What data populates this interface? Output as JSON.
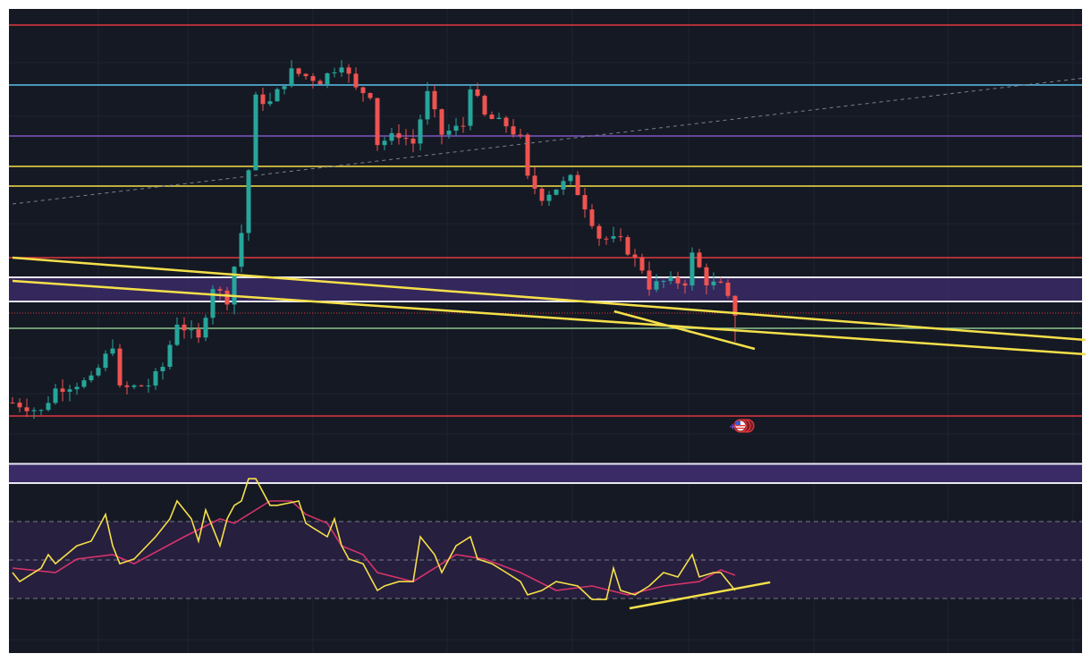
{
  "chart_data": {
    "type": "candlestick",
    "title": "",
    "xlabel": "",
    "ylabel": "",
    "grid": true,
    "colors": {
      "background": "#151924",
      "up": "#26a69a",
      "down": "#ef5350",
      "rsi": "#f5e04a",
      "rsi_ma": "#d6336c",
      "trendline": "#f5e04a"
    },
    "price": {
      "ylim": [
        0,
        98
      ],
      "close_anchors": [
        [
          0,
          10
        ],
        [
          4,
          8
        ],
        [
          6,
          13
        ],
        [
          11,
          15
        ],
        [
          14,
          23
        ],
        [
          15,
          13
        ],
        [
          19,
          14
        ],
        [
          21,
          18
        ],
        [
          23,
          28
        ],
        [
          26,
          24
        ],
        [
          28,
          36
        ],
        [
          30,
          33
        ],
        [
          32,
          48
        ],
        [
          33,
          62
        ],
        [
          34,
          78
        ],
        [
          36,
          77
        ],
        [
          39,
          84
        ],
        [
          43,
          82
        ],
        [
          46,
          86
        ],
        [
          48,
          80
        ],
        [
          50,
          79
        ],
        [
          51,
          68
        ],
        [
          54,
          70
        ],
        [
          56,
          68
        ],
        [
          58,
          79
        ],
        [
          60,
          70
        ],
        [
          63,
          72
        ],
        [
          64,
          81
        ],
        [
          66,
          74
        ],
        [
          69,
          72
        ],
        [
          71,
          69
        ],
        [
          72,
          60
        ],
        [
          74,
          56
        ],
        [
          78,
          60
        ],
        [
          80,
          54
        ],
        [
          82,
          47
        ],
        [
          85,
          46
        ],
        [
          88,
          40
        ],
        [
          89,
          36
        ],
        [
          91,
          37
        ],
        [
          94,
          37
        ],
        [
          95,
          43
        ],
        [
          97,
          37
        ],
        [
          99,
          36
        ],
        [
          101,
          30
        ]
      ],
      "last_low": 23.6,
      "levels": [
        {
          "value": 94.4,
          "color": "#e0393e",
          "style": "solid"
        },
        {
          "value": 81,
          "color": "#5bc0eb",
          "style": "solid"
        },
        {
          "value": 69.6,
          "color": "#7e57c2",
          "style": "solid"
        },
        {
          "value": 62.8,
          "color": "#f5e04a",
          "style": "solid"
        },
        {
          "value": 58.4,
          "color": "#f5e04a",
          "style": "solid"
        },
        {
          "value": 42.4,
          "color": "#e0393e",
          "style": "solid"
        },
        {
          "value": 30,
          "color": "#e0393e",
          "style": "dotted"
        },
        {
          "value": 26.6,
          "color": "#8bc58b",
          "style": "solid"
        },
        {
          "value": 7,
          "color": "#e0393e",
          "style": "solid"
        }
      ],
      "zone": {
        "from": 32.6,
        "to": 38,
        "color": "#3a2a66"
      },
      "trendlines": [
        {
          "from": [
            0,
            42.4
          ],
          "to": [
            150,
            24
          ],
          "color": "#f5e04a",
          "style": "solid"
        },
        {
          "from": [
            0,
            37.2
          ],
          "to": [
            150,
            20.8
          ],
          "color": "#f5e04a",
          "style": "solid"
        },
        {
          "from": [
            84.1,
            30.4
          ],
          "to": [
            103.75,
            22
          ],
          "color": "#f5e04a",
          "style": "solid"
        },
        {
          "from": [
            0,
            54.4
          ],
          "to": [
            150,
            82.6
          ],
          "color": "#7a7f8c",
          "style": "dashed"
        }
      ],
      "marker": {
        "icon": "us-flag-icon",
        "bar": 101,
        "value": 5
      }
    },
    "rsi": {
      "ylim": [
        8.6,
        100
      ],
      "levels": [
        70,
        50,
        30
      ],
      "band": [
        30,
        70
      ],
      "upper_zone": [
        90,
        100
      ],
      "values": [
        [
          0,
          43.5
        ],
        [
          1,
          38.8
        ],
        [
          4,
          45.8
        ],
        [
          5,
          52.8
        ],
        [
          6,
          48.1
        ],
        [
          9,
          57.4
        ],
        [
          11,
          59.8
        ],
        [
          12,
          66.7
        ],
        [
          13,
          73.7
        ],
        [
          14,
          57.4
        ],
        [
          15,
          48.1
        ],
        [
          17,
          50.5
        ],
        [
          20,
          62.1
        ],
        [
          22,
          71.4
        ],
        [
          23,
          80.7
        ],
        [
          25,
          71.4
        ],
        [
          26,
          59.8
        ],
        [
          27,
          76
        ],
        [
          29,
          57.4
        ],
        [
          30,
          71.4
        ],
        [
          31,
          78.4
        ],
        [
          32,
          80.7
        ],
        [
          33,
          92.3
        ],
        [
          34,
          92.3
        ],
        [
          36,
          78.4
        ],
        [
          37,
          78.4
        ],
        [
          40,
          80.7
        ],
        [
          41,
          69.1
        ],
        [
          42,
          66.7
        ],
        [
          44,
          62.1
        ],
        [
          45,
          71.4
        ],
        [
          46,
          57.4
        ],
        [
          47,
          50.5
        ],
        [
          49,
          48.1
        ],
        [
          51,
          34.2
        ],
        [
          52,
          36.5
        ],
        [
          54,
          38.8
        ],
        [
          56,
          38.8
        ],
        [
          57,
          62.1
        ],
        [
          59,
          52.8
        ],
        [
          60,
          43.5
        ],
        [
          61,
          50.5
        ],
        [
          62,
          57.4
        ],
        [
          64,
          62.1
        ],
        [
          65,
          50.5
        ],
        [
          67,
          48.1
        ],
        [
          69,
          43.5
        ],
        [
          71,
          38.8
        ],
        [
          72,
          31.9
        ],
        [
          74,
          34.2
        ],
        [
          76,
          38.8
        ],
        [
          79,
          36.5
        ],
        [
          81,
          29.5
        ],
        [
          83,
          29.5
        ],
        [
          84,
          45.8
        ],
        [
          85,
          34.2
        ],
        [
          87,
          31.9
        ],
        [
          89,
          36.5
        ],
        [
          91,
          43.5
        ],
        [
          93,
          41.2
        ],
        [
          95,
          52.8
        ],
        [
          96,
          41.2
        ],
        [
          98,
          43.5
        ],
        [
          99,
          43.5
        ],
        [
          101,
          34.2
        ]
      ],
      "ma": [
        [
          0,
          45.8
        ],
        [
          6,
          43.5
        ],
        [
          9,
          50.5
        ],
        [
          14,
          52.8
        ],
        [
          17,
          48.1
        ],
        [
          24,
          62.1
        ],
        [
          29,
          71.4
        ],
        [
          31,
          69.1
        ],
        [
          36,
          80.7
        ],
        [
          39,
          80.7
        ],
        [
          41,
          73.7
        ],
        [
          44,
          69.1
        ],
        [
          46,
          57.4
        ],
        [
          49,
          52.8
        ],
        [
          51,
          43.5
        ],
        [
          56,
          38.8
        ],
        [
          60,
          48.1
        ],
        [
          62,
          52.8
        ],
        [
          66,
          50.5
        ],
        [
          71,
          43.5
        ],
        [
          76,
          34.2
        ],
        [
          81,
          36.5
        ],
        [
          86,
          31.9
        ],
        [
          91,
          36.5
        ],
        [
          96,
          38.8
        ],
        [
          99,
          44.9
        ],
        [
          101,
          42.1
        ]
      ],
      "trendline": {
        "from": [
          86.25,
          24.9
        ],
        "to": [
          105.9,
          38.4
        ],
        "color": "#f5e04a"
      }
    }
  }
}
